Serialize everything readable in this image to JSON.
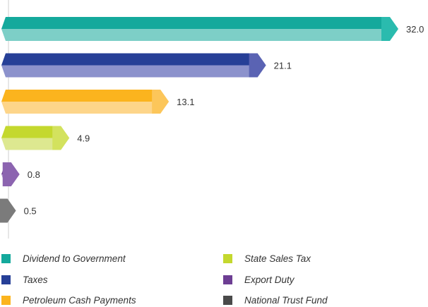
{
  "chart_data": {
    "type": "bar",
    "orientation": "horizontal",
    "categories": [
      "Dividend to Government",
      "Taxes",
      "Petroleum Cash Payments",
      "State Sales Tax",
      "Export Duty",
      "National Trust Fund"
    ],
    "values": [
      32.0,
      21.1,
      13.1,
      4.9,
      0.8,
      0.5
    ],
    "value_labels": [
      "32.0",
      "21.1",
      "13.1",
      "4.9",
      "0.8",
      "0.5"
    ],
    "title": "",
    "xlabel": "",
    "ylabel": "",
    "grid": false,
    "legend_position": "bottom"
  },
  "colors": [
    {
      "top": "#14A99C",
      "bottom": "#7DCFC7",
      "cap": "#2ABBAE",
      "swatch": "#14A99C"
    },
    {
      "top": "#263F97",
      "bottom": "#8C92CC",
      "cap": "#5A63B3",
      "swatch": "#263F97"
    },
    {
      "top": "#FBB41E",
      "bottom": "#FDD58A",
      "cap": "#FCC65A",
      "swatch": "#FBB41E"
    },
    {
      "top": "#C4D82E",
      "bottom": "#DDE890",
      "cap": "#D3E25E",
      "swatch": "#C4D82E"
    },
    {
      "top": "#6D3E93",
      "bottom": "#B497CF",
      "cap": "#8C64B0",
      "swatch": "#6D3E93"
    },
    {
      "top": "#4A4A4A",
      "bottom": "#A2A2A2",
      "cap": "#7B7B7B",
      "swatch": "#4A4A4A"
    }
  ],
  "legend": [
    {
      "label": "Dividend to Government",
      "icon": "teal-square"
    },
    {
      "label": "Taxes",
      "icon": "navy-square"
    },
    {
      "label": "Petroleum Cash Payments",
      "icon": "amber-square"
    },
    {
      "label": "State Sales Tax",
      "icon": "lime-square"
    },
    {
      "label": "Export Duty",
      "icon": "purple-square"
    },
    {
      "label": "National Trust Fund",
      "icon": "gray-square"
    }
  ]
}
